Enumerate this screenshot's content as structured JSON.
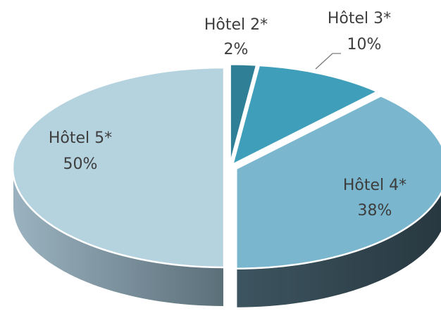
{
  "chart_data": {
    "type": "pie",
    "style": "3d-exploded",
    "title": "",
    "legend": "none",
    "slices": [
      {
        "name": "Hôtel 2*",
        "value": 2,
        "label": "2%",
        "color": "#2f7f96"
      },
      {
        "name": "Hôtel 3*",
        "value": 10,
        "label": "10%",
        "color": "#3f9fba"
      },
      {
        "name": "Hôtel 4*",
        "value": 38,
        "label": "38%",
        "color": "#7ab7ce"
      },
      {
        "name": "Hôtel 5*",
        "value": 50,
        "label": "50%",
        "color": "#b5d2df"
      }
    ]
  }
}
